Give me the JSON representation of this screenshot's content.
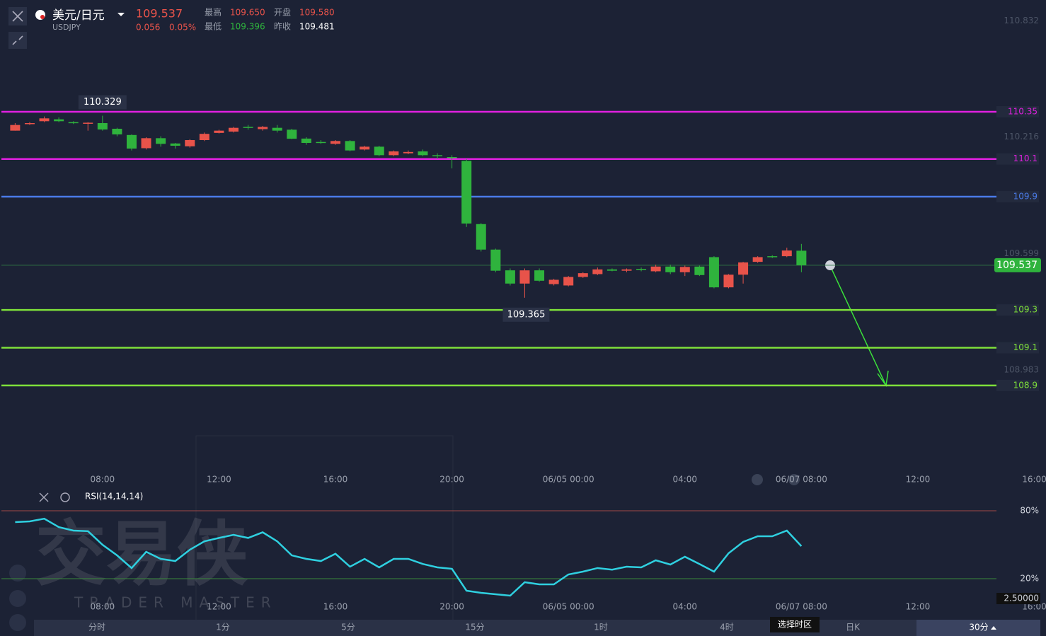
{
  "header": {
    "name": "美元/日元",
    "code": "USDJPY",
    "price": "109.537",
    "change": "0.056",
    "change_pct": "0.05%",
    "stats": [
      {
        "label": "最高",
        "value": "109.650",
        "color": "#e8534a"
      },
      {
        "label": "开盘",
        "value": "109.580",
        "color": "#e8534a"
      },
      {
        "label": "最低",
        "value": "109.396",
        "color": "#2fb33d"
      },
      {
        "label": "昨收",
        "value": "109.481",
        "color": "#ffffff"
      }
    ]
  },
  "chart_data": [
    {
      "type": "candlestick",
      "open": [
        110.25,
        110.285,
        110.3,
        110.31,
        110.295,
        110.29,
        110.29,
        110.26,
        110.227,
        110.157,
        110.21,
        110.182,
        110.167,
        110.2,
        110.238,
        110.245,
        110.27,
        110.258,
        110.265,
        110.255,
        110.208,
        110.19,
        110.18,
        110.195,
        110.15,
        110.165,
        110.12,
        110.13,
        110.14,
        110.12,
        110.11,
        110.09,
        109.755,
        109.62,
        109.51,
        109.44,
        109.51,
        109.437,
        109.43,
        109.475,
        109.49,
        109.515,
        109.508,
        109.518,
        109.505,
        109.53,
        109.5,
        109.53,
        109.58,
        109.42,
        109.487,
        109.555,
        109.585,
        109.585,
        109.614
      ],
      "high": [
        110.29,
        110.295,
        110.325,
        110.32,
        110.3,
        110.295,
        110.329,
        110.265,
        110.23,
        110.215,
        110.22,
        110.185,
        110.205,
        110.24,
        110.255,
        110.27,
        110.28,
        110.275,
        110.28,
        110.26,
        110.215,
        110.2,
        110.2,
        110.2,
        110.17,
        110.17,
        110.145,
        110.145,
        110.15,
        110.13,
        110.12,
        110.1,
        109.76,
        109.625,
        109.52,
        109.52,
        109.52,
        109.465,
        109.48,
        109.5,
        109.525,
        109.52,
        109.52,
        109.525,
        109.54,
        109.54,
        109.535,
        109.535,
        109.585,
        109.49,
        109.555,
        109.585,
        109.59,
        109.63,
        109.65
      ],
      "low": [
        110.25,
        110.28,
        110.295,
        110.295,
        110.285,
        110.25,
        110.25,
        110.22,
        110.145,
        110.15,
        110.165,
        110.155,
        110.16,
        110.195,
        110.235,
        110.24,
        110.255,
        110.25,
        110.24,
        110.205,
        110.175,
        110.18,
        110.175,
        110.14,
        110.145,
        110.115,
        110.115,
        110.125,
        110.115,
        110.1,
        110.05,
        109.74,
        109.61,
        109.5,
        109.43,
        109.365,
        109.45,
        109.43,
        109.425,
        109.47,
        109.485,
        109.505,
        109.5,
        109.505,
        109.5,
        109.49,
        109.48,
        109.48,
        109.415,
        109.415,
        109.44,
        109.55,
        109.575,
        109.58,
        109.5
      ],
      "close": [
        110.28,
        110.29,
        110.315,
        110.3,
        110.29,
        110.292,
        110.256,
        110.23,
        110.155,
        110.21,
        110.18,
        110.17,
        110.2,
        110.233,
        110.25,
        110.265,
        110.268,
        110.27,
        110.25,
        110.207,
        110.185,
        110.188,
        110.195,
        110.145,
        110.165,
        110.12,
        110.14,
        110.137,
        110.12,
        110.118,
        110.108,
        109.758,
        109.62,
        109.508,
        109.44,
        109.51,
        109.455,
        109.46,
        109.475,
        109.495,
        109.515,
        109.508,
        109.515,
        109.515,
        109.53,
        109.5,
        109.528,
        109.485,
        109.42,
        109.487,
        109.552,
        109.58,
        109.582,
        109.615,
        109.537
      ],
      "up_color": "#e8534a",
      "down_color": "#2fb33d",
      "xlim": [
        -1.04,
        70.8
      ],
      "ylim": [
        108.45,
        110.942
      ],
      "yticks": [
        110.832,
        110.216,
        109.599,
        108.983
      ],
      "xticks": [
        {
          "value": 6,
          "label": "08:00"
        },
        {
          "value": 14,
          "label": "12:00"
        },
        {
          "value": 22,
          "label": "16:00"
        },
        {
          "value": 30,
          "label": "20:00"
        },
        {
          "value": 38,
          "label": "06/05 00:00"
        },
        {
          "value": 46,
          "label": "04:00"
        },
        {
          "value": 54,
          "label": "06/07 08:00"
        },
        {
          "value": 62,
          "label": "12:00"
        },
        {
          "value": 70,
          "label": "16:00"
        }
      ],
      "levels": [
        {
          "value": 110.35,
          "color": "#e020e0"
        },
        {
          "value": 110.1,
          "color": "#e020e0"
        },
        {
          "value": 109.9,
          "color": "#4a7be8"
        },
        {
          "value": 109.3,
          "color": "#7ee03a"
        },
        {
          "value": 109.1,
          "color": "#7ee03a"
        },
        {
          "value": 108.9,
          "color": "#7ee03a"
        }
      ]
    },
    {
      "type": "line",
      "title": "RSI(14,14,14)",
      "color": "#2fd0e0",
      "values": [
        70,
        70.6,
        73,
        65.6,
        62.5,
        62,
        50,
        40.6,
        29.4,
        43.75,
        37.5,
        35.6,
        45.6,
        53,
        56,
        58.75,
        56,
        61,
        53,
        40.6,
        37.5,
        35.6,
        42,
        30.6,
        37.5,
        30,
        37.5,
        37.5,
        33,
        30,
        28.75,
        9.4,
        7.5,
        6.25,
        5,
        16.9,
        15,
        15,
        23.75,
        26.25,
        29.4,
        28,
        30.6,
        30,
        36.25,
        32.5,
        39.4,
        33,
        26.25,
        42.5,
        52.5,
        57.5,
        57.5,
        62.5,
        48.75
      ],
      "ylim": [
        2.5,
        86.25
      ],
      "yticks": [
        {
          "value": 80,
          "label": "80%"
        },
        {
          "value": 20,
          "label": "20%"
        },
        {
          "value": 2.5,
          "label": "2.50000"
        }
      ],
      "tick_line_colors": [
        "#a04848",
        "#3a8a3a",
        null
      ]
    }
  ],
  "tabs": [
    "分时",
    "1分",
    "5分",
    "15分",
    "1时",
    "4时",
    "日K",
    "30分"
  ],
  "tooltip": "选择时区",
  "watermark": {
    "title": "交易侠",
    "subtitle": "TRADER MASTER"
  }
}
